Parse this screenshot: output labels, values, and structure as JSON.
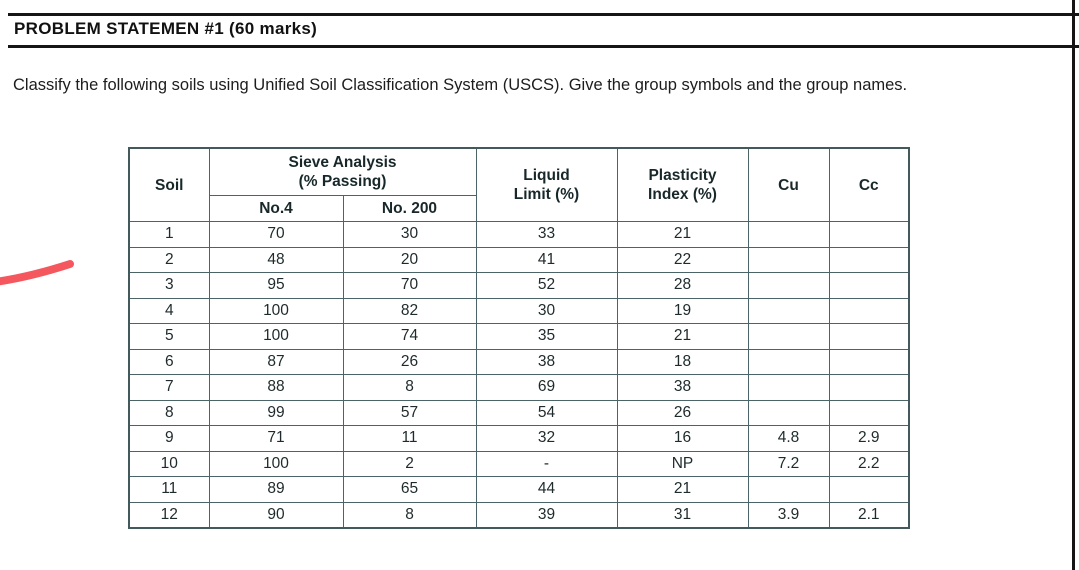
{
  "page": {
    "title": "PROBLEM STATEMEN #1 (60 marks)",
    "intro": "Classify the following soils using Unified Soil Classification System (USCS). Give the group symbols and the group names."
  },
  "table": {
    "headers": {
      "soil": "Soil",
      "sieve_group_line1": "Sieve Analysis",
      "sieve_group_line2": "(% Passing)",
      "no4": "No.4",
      "no200": "No. 200",
      "liquid_line1": "Liquid",
      "liquid_line2": "Limit (%)",
      "plasticity_line1": "Plasticity",
      "plasticity_line2": "Index (%)",
      "cu": "Cu",
      "cc": "Cc"
    },
    "rows": [
      {
        "soil": "1",
        "no4": "70",
        "no200": "30",
        "ll": "33",
        "pi": "21",
        "cu": "",
        "cc": ""
      },
      {
        "soil": "2",
        "no4": "48",
        "no200": "20",
        "ll": "41",
        "pi": "22",
        "cu": "",
        "cc": ""
      },
      {
        "soil": "3",
        "no4": "95",
        "no200": "70",
        "ll": "52",
        "pi": "28",
        "cu": "",
        "cc": ""
      },
      {
        "soil": "4",
        "no4": "100",
        "no200": "82",
        "ll": "30",
        "pi": "19",
        "cu": "",
        "cc": ""
      },
      {
        "soil": "5",
        "no4": "100",
        "no200": "74",
        "ll": "35",
        "pi": "21",
        "cu": "",
        "cc": ""
      },
      {
        "soil": "6",
        "no4": "87",
        "no200": "26",
        "ll": "38",
        "pi": "18",
        "cu": "",
        "cc": ""
      },
      {
        "soil": "7",
        "no4": "88",
        "no200": "8",
        "ll": "69",
        "pi": "38",
        "cu": "",
        "cc": ""
      },
      {
        "soil": "8",
        "no4": "99",
        "no200": "57",
        "ll": "54",
        "pi": "26",
        "cu": "",
        "cc": ""
      },
      {
        "soil": "9",
        "no4": "71",
        "no200": "11",
        "ll": "32",
        "pi": "16",
        "cu": "4.8",
        "cc": "2.9"
      },
      {
        "soil": "10",
        "no4": "100",
        "no200": "2",
        "ll": "-",
        "pi": "NP",
        "cu": "7.2",
        "cc": "2.2"
      },
      {
        "soil": "11",
        "no4": "89",
        "no200": "65",
        "ll": "44",
        "pi": "21",
        "cu": "",
        "cc": ""
      },
      {
        "soil": "12",
        "no4": "90",
        "no200": "8",
        "ll": "39",
        "pi": "31",
        "cu": "3.9",
        "cc": "2.1"
      }
    ]
  },
  "colors": {
    "table_border": "#4a6467",
    "rule_black": "#151515",
    "pen_mark_red": "#f5575e"
  }
}
